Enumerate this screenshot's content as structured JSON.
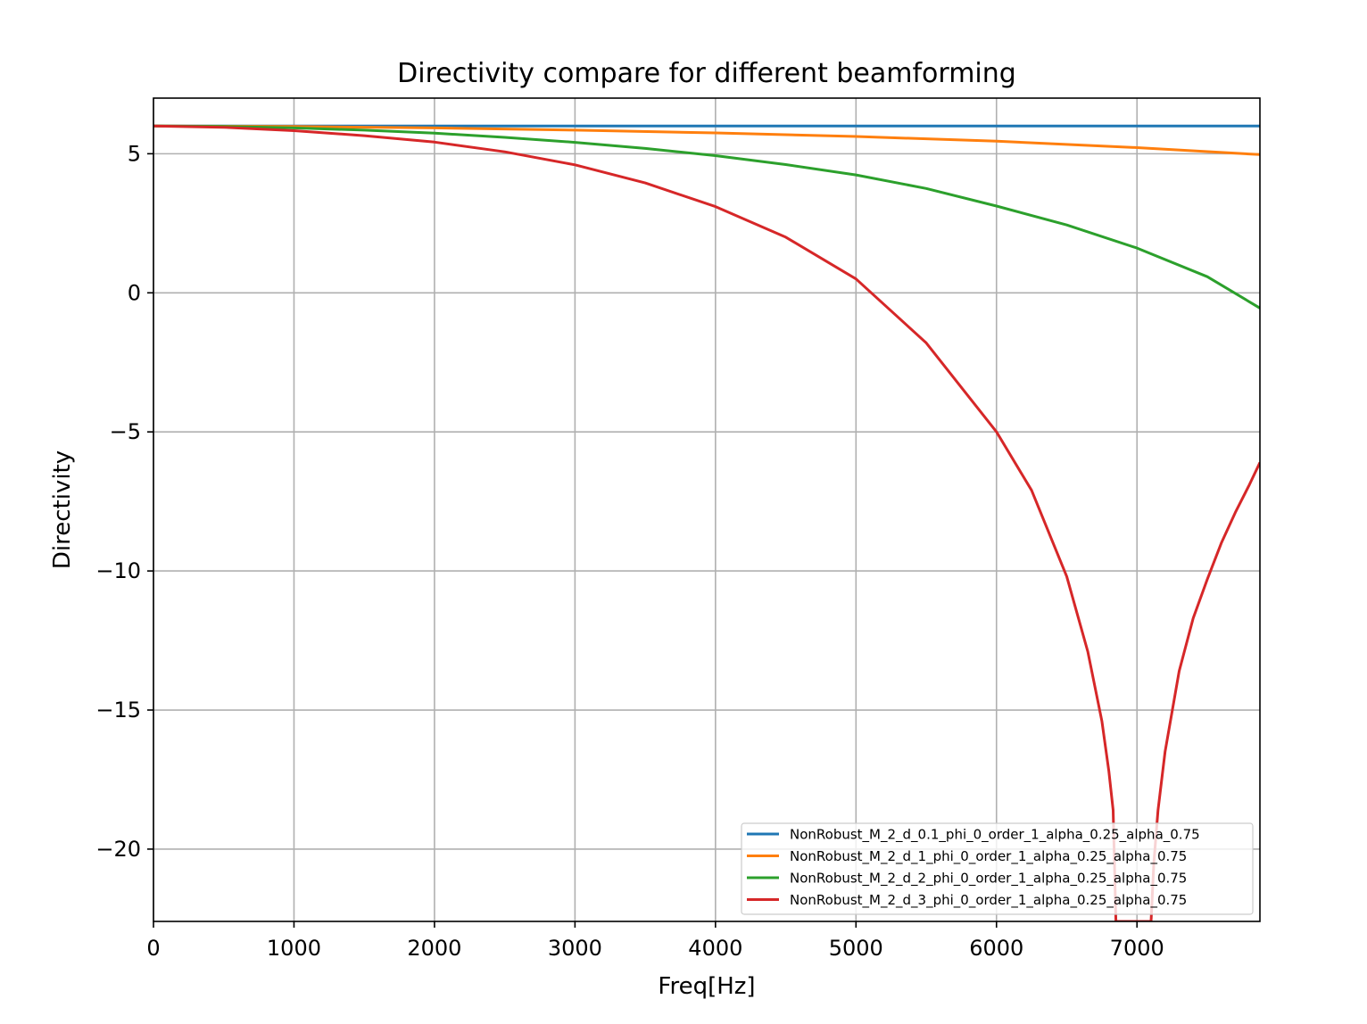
{
  "chart_data": {
    "type": "line",
    "title": "Directivity compare for different beamforming",
    "xlabel": "Freq[Hz]",
    "ylabel": "Directivity",
    "xlim": [
      0,
      7875
    ],
    "ylim": [
      -22.6,
      7.0
    ],
    "xticks": [
      0,
      1000,
      2000,
      3000,
      4000,
      5000,
      6000,
      7000
    ],
    "xtick_labels": [
      "0",
      "1000",
      "2000",
      "3000",
      "4000",
      "5000",
      "6000",
      "7000"
    ],
    "yticks": [
      5,
      0,
      -5,
      -10,
      -15,
      -20
    ],
    "ytick_labels": [
      "5",
      "0",
      "−5",
      "−10",
      "−15",
      "−20"
    ],
    "grid": true,
    "legend_position": "lower-right",
    "series": [
      {
        "name": "NonRobust_M_2_d_0.1_phi_0_order_1_alpha_0.25_alpha_0.75",
        "color": "#1f77b4",
        "x": [
          0,
          1000,
          2000,
          3000,
          4000,
          5000,
          6000,
          7000,
          7875
        ],
        "y": [
          6.0,
          6.0,
          6.0,
          6.0,
          6.0,
          6.0,
          6.0,
          6.0,
          6.0
        ]
      },
      {
        "name": "NonRobust_M_2_d_1_phi_0_order_1_alpha_0.25_alpha_0.75",
        "color": "#ff7f0e",
        "x": [
          0,
          1000,
          2000,
          3000,
          4000,
          5000,
          6000,
          7000,
          7875
        ],
        "y": [
          6.0,
          5.98,
          5.93,
          5.85,
          5.75,
          5.62,
          5.45,
          5.22,
          4.97
        ]
      },
      {
        "name": "NonRobust_M_2_d_2_phi_0_order_1_alpha_0.25_alpha_0.75",
        "color": "#2ca02c",
        "x": [
          0,
          500,
          1000,
          1500,
          2000,
          2500,
          3000,
          3500,
          4000,
          4500,
          5000,
          5500,
          6000,
          6500,
          7000,
          7500,
          7875
        ],
        "y": [
          6.0,
          5.98,
          5.93,
          5.85,
          5.74,
          5.59,
          5.41,
          5.19,
          4.93,
          4.61,
          4.24,
          3.75,
          3.12,
          2.44,
          1.61,
          0.58,
          -0.55
        ]
      },
      {
        "name": "NonRobust_M_2_d_3_phi_0_order_1_alpha_0.25_alpha_0.75",
        "color": "#d62728",
        "x": [
          0,
          500,
          1000,
          1500,
          2000,
          2500,
          3000,
          3500,
          4000,
          4500,
          5000,
          5500,
          6000,
          6250,
          6500,
          6650,
          6750,
          6800,
          6830,
          6850,
          7100,
          7120,
          7150,
          7200,
          7300,
          7400,
          7500,
          7600,
          7700,
          7800,
          7875
        ],
        "y": [
          6.0,
          5.95,
          5.83,
          5.65,
          5.42,
          5.07,
          4.6,
          3.95,
          3.1,
          2.0,
          0.5,
          -1.8,
          -5.0,
          -7.1,
          -10.2,
          -12.9,
          -15.4,
          -17.2,
          -18.6,
          -22.6,
          -22.6,
          -20.5,
          -18.6,
          -16.5,
          -13.6,
          -11.7,
          -10.3,
          -9.0,
          -7.9,
          -6.9,
          -6.1
        ]
      }
    ]
  }
}
